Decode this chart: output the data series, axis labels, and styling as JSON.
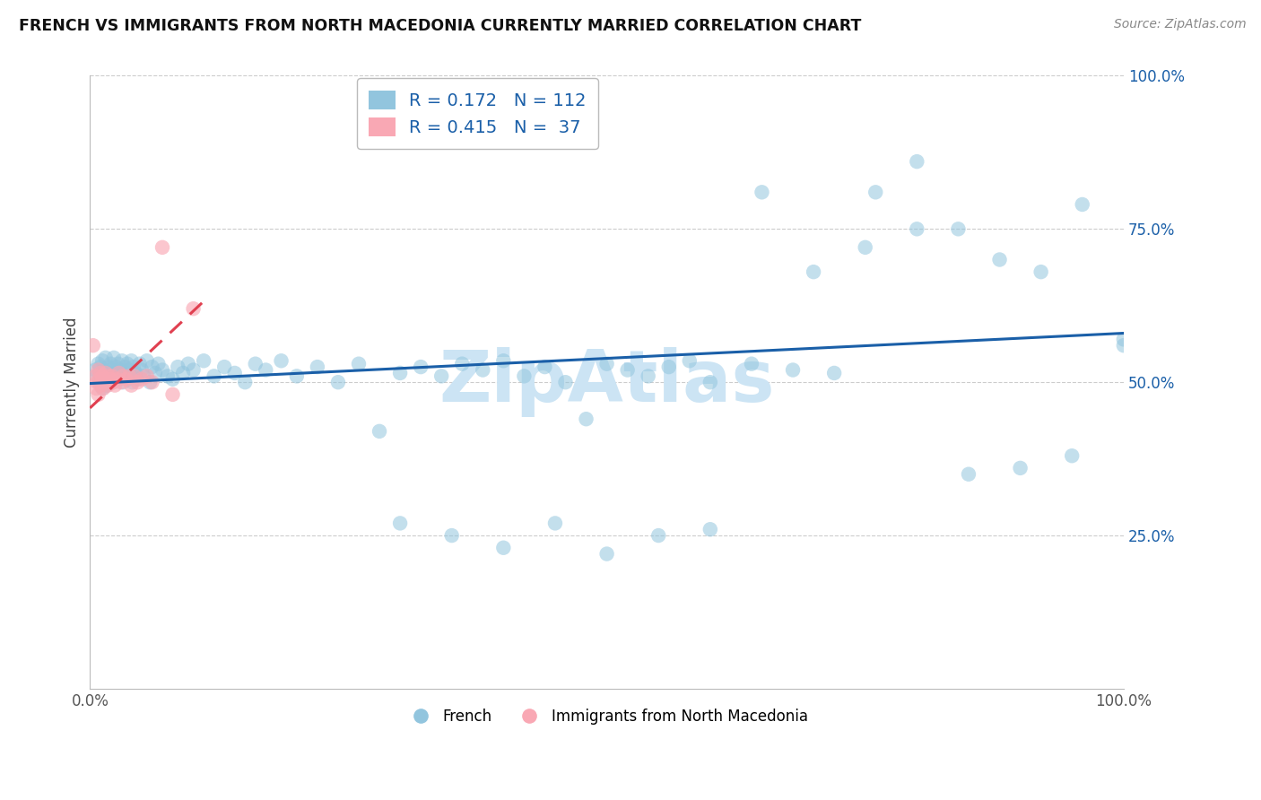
{
  "title": "FRENCH VS IMMIGRANTS FROM NORTH MACEDONIA CURRENTLY MARRIED CORRELATION CHART",
  "source": "Source: ZipAtlas.com",
  "ylabel": "Currently Married",
  "blue_R": 0.172,
  "blue_N": 112,
  "pink_R": 0.415,
  "pink_N": 37,
  "blue_color": "#92c5de",
  "pink_color": "#f9a8b4",
  "blue_line_color": "#1a5fa8",
  "pink_line_color": "#e04050",
  "watermark_color": "#cce4f4",
  "grid_color": "#cccccc",
  "title_color": "#111111",
  "source_color": "#888888",
  "blue_points_x": [
    0.005,
    0.007,
    0.008,
    0.009,
    0.01,
    0.01,
    0.011,
    0.012,
    0.012,
    0.013,
    0.014,
    0.015,
    0.015,
    0.016,
    0.017,
    0.018,
    0.019,
    0.02,
    0.02,
    0.021,
    0.022,
    0.023,
    0.024,
    0.025,
    0.026,
    0.027,
    0.028,
    0.029,
    0.03,
    0.031,
    0.032,
    0.033,
    0.034,
    0.035,
    0.036,
    0.037,
    0.038,
    0.039,
    0.04,
    0.041,
    0.042,
    0.044,
    0.046,
    0.048,
    0.05,
    0.052,
    0.055,
    0.058,
    0.06,
    0.063,
    0.066,
    0.07,
    0.075,
    0.08,
    0.085,
    0.09,
    0.095,
    0.1,
    0.11,
    0.12,
    0.13,
    0.14,
    0.15,
    0.16,
    0.17,
    0.185,
    0.2,
    0.22,
    0.24,
    0.26,
    0.28,
    0.3,
    0.32,
    0.34,
    0.36,
    0.38,
    0.4,
    0.42,
    0.44,
    0.46,
    0.48,
    0.5,
    0.52,
    0.54,
    0.56,
    0.58,
    0.6,
    0.64,
    0.68,
    0.72,
    0.76,
    0.8,
    0.84,
    0.88,
    0.92,
    0.96,
    1.0,
    0.3,
    0.35,
    0.4,
    0.45,
    0.5,
    0.55,
    0.6,
    0.65,
    0.7,
    0.75,
    0.8,
    0.85,
    0.9,
    0.95,
    1.0
  ],
  "blue_points_y": [
    0.52,
    0.51,
    0.53,
    0.5,
    0.515,
    0.525,
    0.505,
    0.535,
    0.49,
    0.51,
    0.52,
    0.5,
    0.54,
    0.495,
    0.515,
    0.525,
    0.505,
    0.51,
    0.53,
    0.52,
    0.5,
    0.54,
    0.515,
    0.525,
    0.51,
    0.53,
    0.505,
    0.52,
    0.515,
    0.535,
    0.5,
    0.51,
    0.525,
    0.515,
    0.53,
    0.505,
    0.52,
    0.51,
    0.535,
    0.5,
    0.525,
    0.515,
    0.505,
    0.53,
    0.52,
    0.51,
    0.535,
    0.5,
    0.525,
    0.515,
    0.53,
    0.52,
    0.51,
    0.505,
    0.525,
    0.515,
    0.53,
    0.52,
    0.535,
    0.51,
    0.525,
    0.515,
    0.5,
    0.53,
    0.52,
    0.535,
    0.51,
    0.525,
    0.5,
    0.53,
    0.42,
    0.515,
    0.525,
    0.51,
    0.53,
    0.52,
    0.535,
    0.51,
    0.525,
    0.5,
    0.44,
    0.53,
    0.52,
    0.51,
    0.525,
    0.535,
    0.5,
    0.53,
    0.52,
    0.515,
    0.81,
    0.86,
    0.75,
    0.7,
    0.68,
    0.79,
    0.56,
    0.27,
    0.25,
    0.23,
    0.27,
    0.22,
    0.25,
    0.26,
    0.81,
    0.68,
    0.72,
    0.75,
    0.35,
    0.36,
    0.38,
    0.57
  ],
  "pink_points_x": [
    0.003,
    0.005,
    0.006,
    0.007,
    0.008,
    0.008,
    0.009,
    0.01,
    0.01,
    0.011,
    0.012,
    0.013,
    0.014,
    0.015,
    0.016,
    0.017,
    0.018,
    0.019,
    0.02,
    0.021,
    0.022,
    0.024,
    0.026,
    0.028,
    0.03,
    0.032,
    0.035,
    0.038,
    0.04,
    0.043,
    0.046,
    0.05,
    0.055,
    0.06,
    0.07,
    0.08,
    0.1
  ],
  "pink_points_y": [
    0.56,
    0.51,
    0.49,
    0.5,
    0.48,
    0.52,
    0.505,
    0.495,
    0.515,
    0.5,
    0.51,
    0.49,
    0.505,
    0.515,
    0.5,
    0.495,
    0.51,
    0.5,
    0.505,
    0.51,
    0.5,
    0.495,
    0.505,
    0.515,
    0.5,
    0.51,
    0.505,
    0.51,
    0.495,
    0.51,
    0.5,
    0.505,
    0.51,
    0.5,
    0.72,
    0.48,
    0.62
  ],
  "ytick_vals": [
    0.25,
    0.5,
    0.75,
    1.0
  ],
  "ytick_labels": [
    "25.0%",
    "50.0%",
    "75.0%",
    "100.0%"
  ]
}
